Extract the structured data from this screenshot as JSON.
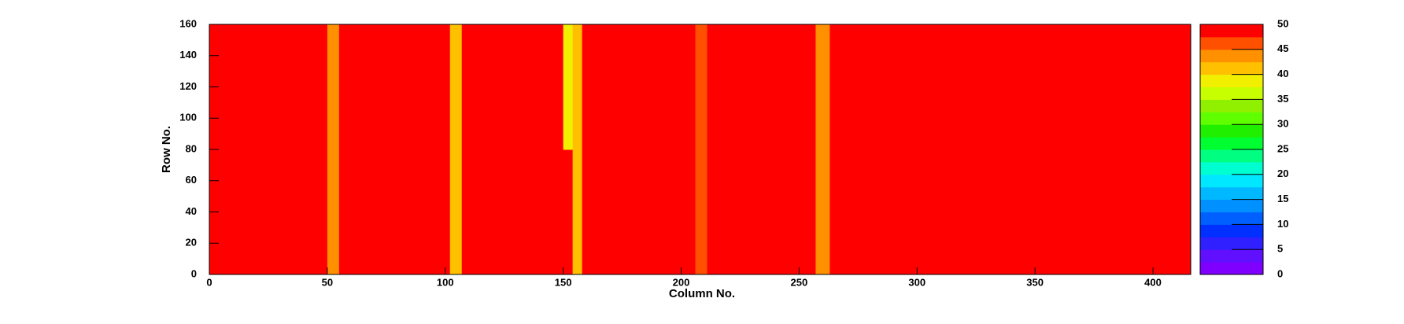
{
  "chart_data": {
    "type": "heatmap",
    "xlabel": "Column No.",
    "ylabel": "Row No.",
    "xbins": [
      0,
      50,
      55,
      102,
      107,
      150,
      154,
      158,
      206,
      211,
      257,
      263,
      416
    ],
    "ybins": [
      0,
      40,
      80,
      120,
      160
    ],
    "values": [
      [
        48,
        43,
        48,
        42,
        48,
        48,
        42,
        48,
        45,
        48,
        44,
        50
      ],
      [
        48,
        43,
        48,
        42,
        48,
        48,
        42,
        48,
        45,
        48,
        44,
        50
      ],
      [
        48,
        43,
        48,
        42,
        48,
        38,
        42,
        48,
        45,
        48,
        44,
        50
      ],
      [
        48,
        43,
        48,
        42,
        48,
        38,
        42,
        48,
        45,
        48,
        44,
        50
      ]
    ],
    "xlim": [
      0,
      416
    ],
    "ylim": [
      0,
      160
    ],
    "zlim": [
      0,
      50
    ],
    "xticks": [
      0,
      50,
      100,
      150,
      200,
      250,
      300,
      350,
      400
    ],
    "yticks": [
      0,
      20,
      40,
      60,
      80,
      100,
      120,
      140,
      160
    ],
    "zticks": [
      0,
      5,
      10,
      15,
      20,
      25,
      30,
      35,
      40,
      45,
      50
    ],
    "palette": [
      "#8000ff",
      "#6010ff",
      "#3020ff",
      "#0030ff",
      "#0060ff",
      "#0090ff",
      "#00b8ff",
      "#00e8ff",
      "#00ffd0",
      "#00ff80",
      "#00ff30",
      "#20f000",
      "#60ff00",
      "#90f000",
      "#c8ff00",
      "#f0f000",
      "#ffc000",
      "#ff9000",
      "#ff5000",
      "#ff0000"
    ]
  }
}
